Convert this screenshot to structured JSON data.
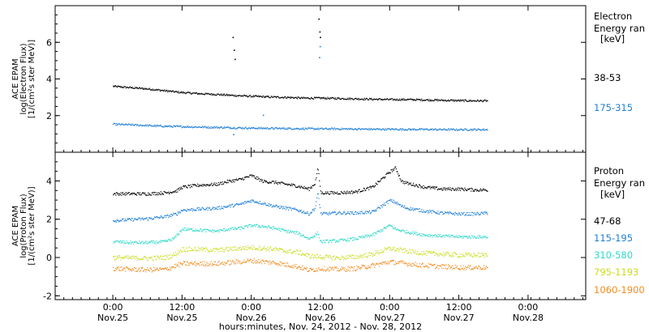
{
  "chart_data": [
    {
      "name": "electron_panel",
      "type": "scatter",
      "ylabel": [
        "ACE EPAM",
        "log(Electron Flux)",
        "[1/(cm²s ster MeV)]"
      ],
      "ylim": [
        0,
        8
      ],
      "yticks": [
        2,
        4,
        6
      ],
      "legend_title": [
        "Electron",
        "Energy ran",
        "[keV]"
      ],
      "series": [
        {
          "name": "38-53",
          "color": "#000000",
          "points": [
            [
              0,
              3.62
            ],
            [
              6,
              3.55
            ],
            [
              12,
              3.48
            ],
            [
              18,
              3.38
            ],
            [
              24,
              3.28
            ],
            [
              30,
              3.22
            ],
            [
              36,
              3.18
            ],
            [
              42,
              3.12
            ],
            [
              48,
              3.08
            ],
            [
              54,
              3.04
            ],
            [
              60,
              3.02
            ],
            [
              66,
              2.98
            ],
            [
              72,
              2.98
            ],
            [
              78,
              2.96
            ],
            [
              84,
              2.94
            ],
            [
              90,
              2.92
            ],
            [
              96,
              2.9
            ],
            [
              102,
              2.9
            ],
            [
              108,
              2.88
            ],
            [
              114,
              2.86
            ],
            [
              120,
              2.84
            ],
            [
              126,
              2.83
            ],
            [
              130,
              2.83
            ]
          ],
          "spikes": [
            [
              41.5,
              6.3
            ],
            [
              41.9,
              5.6
            ],
            [
              42.2,
              5.1
            ],
            [
              71.3,
              7.3
            ],
            [
              71.6,
              6.6
            ],
            [
              71.8,
              6.3
            ]
          ]
        },
        {
          "name": "175-315",
          "color": "#1e7fd6",
          "points": [
            [
              0,
              1.55
            ],
            [
              6,
              1.52
            ],
            [
              12,
              1.48
            ],
            [
              18,
              1.44
            ],
            [
              24,
              1.42
            ],
            [
              30,
              1.4
            ],
            [
              36,
              1.38
            ],
            [
              42,
              1.36
            ],
            [
              48,
              1.34
            ],
            [
              54,
              1.33
            ],
            [
              60,
              1.32
            ],
            [
              66,
              1.31
            ],
            [
              72,
              1.3
            ],
            [
              78,
              1.3
            ],
            [
              84,
              1.29
            ],
            [
              90,
              1.28
            ],
            [
              96,
              1.28
            ],
            [
              102,
              1.27
            ],
            [
              108,
              1.27
            ],
            [
              114,
              1.26
            ],
            [
              120,
              1.26
            ],
            [
              126,
              1.26
            ],
            [
              130,
              1.26
            ]
          ],
          "spikes": [
            [
              41.7,
              1.0
            ],
            [
              52.0,
              2.05
            ],
            [
              71.5,
              5.2
            ],
            [
              71.7,
              5.8
            ]
          ]
        }
      ]
    },
    {
      "name": "proton_panel",
      "type": "scatter",
      "xlabel": "hours:minutes, Nov. 24, 2012 - Nov. 28, 2012",
      "ylabel": [
        "ACE EPAM",
        "log(Proton Flux)",
        "[1/(cm²s ster MeV)]"
      ],
      "ylim": [
        -2.2,
        5.5
      ],
      "yticks": [
        -2,
        0,
        2,
        4
      ],
      "legend_title": [
        "Proton",
        "Energy ran",
        "[keV]"
      ],
      "series": [
        {
          "name": "47-68",
          "color": "#000000",
          "points": [
            [
              0,
              3.35
            ],
            [
              6,
              3.35
            ],
            [
              12,
              3.35
            ],
            [
              18,
              3.4
            ],
            [
              22,
              3.5
            ],
            [
              24,
              3.7
            ],
            [
              30,
              3.8
            ],
            [
              36,
              3.85
            ],
            [
              40,
              4.0
            ],
            [
              44,
              4.1
            ],
            [
              48,
              4.3
            ],
            [
              52,
              4.0
            ],
            [
              56,
              3.95
            ],
            [
              60,
              3.85
            ],
            [
              64,
              3.75
            ],
            [
              68,
              3.6
            ],
            [
              70,
              3.9
            ],
            [
              71,
              4.7
            ],
            [
              72,
              3.4
            ],
            [
              78,
              3.4
            ],
            [
              84,
              3.45
            ],
            [
              90,
              3.7
            ],
            [
              96,
              4.5
            ],
            [
              98,
              4.7
            ],
            [
              100,
              4.0
            ],
            [
              102,
              3.9
            ],
            [
              108,
              3.7
            ],
            [
              114,
              3.6
            ],
            [
              120,
              3.6
            ],
            [
              126,
              3.55
            ],
            [
              130,
              3.55
            ]
          ]
        },
        {
          "name": "115-195",
          "color": "#1e7fd6",
          "points": [
            [
              0,
              1.95
            ],
            [
              6,
              2.0
            ],
            [
              12,
              2.05
            ],
            [
              18,
              2.15
            ],
            [
              22,
              2.3
            ],
            [
              24,
              2.5
            ],
            [
              30,
              2.55
            ],
            [
              36,
              2.6
            ],
            [
              40,
              2.7
            ],
            [
              44,
              2.8
            ],
            [
              48,
              3.0
            ],
            [
              52,
              2.85
            ],
            [
              56,
              2.7
            ],
            [
              60,
              2.6
            ],
            [
              64,
              2.5
            ],
            [
              68,
              2.3
            ],
            [
              70,
              2.6
            ],
            [
              71,
              3.4
            ],
            [
              72,
              2.3
            ],
            [
              78,
              2.35
            ],
            [
              84,
              2.35
            ],
            [
              90,
              2.4
            ],
            [
              96,
              3.0
            ],
            [
              98,
              2.9
            ],
            [
              100,
              2.7
            ],
            [
              102,
              2.6
            ],
            [
              108,
              2.45
            ],
            [
              114,
              2.35
            ],
            [
              120,
              2.3
            ],
            [
              126,
              2.3
            ],
            [
              130,
              2.35
            ]
          ]
        },
        {
          "name": "310-580",
          "color": "#2fd9c8",
          "points": [
            [
              0,
              0.85
            ],
            [
              6,
              0.8
            ],
            [
              12,
              0.8
            ],
            [
              18,
              0.85
            ],
            [
              21,
              1.0
            ],
            [
              24,
              1.5
            ],
            [
              30,
              1.45
            ],
            [
              36,
              1.4
            ],
            [
              40,
              1.5
            ],
            [
              44,
              1.55
            ],
            [
              48,
              1.7
            ],
            [
              52,
              1.65
            ],
            [
              56,
              1.55
            ],
            [
              60,
              1.4
            ],
            [
              64,
              1.3
            ],
            [
              68,
              1.0
            ],
            [
              71,
              1.3
            ],
            [
              72,
              0.85
            ],
            [
              78,
              0.9
            ],
            [
              84,
              1.0
            ],
            [
              90,
              1.2
            ],
            [
              96,
              1.7
            ],
            [
              98,
              1.5
            ],
            [
              102,
              1.35
            ],
            [
              108,
              1.2
            ],
            [
              114,
              1.15
            ],
            [
              120,
              1.1
            ],
            [
              126,
              1.1
            ],
            [
              130,
              1.1
            ]
          ]
        },
        {
          "name": "795-1193",
          "color": "#c8dc1e",
          "points": [
            [
              0,
              0.02
            ],
            [
              6,
              0.0
            ],
            [
              12,
              -0.02
            ],
            [
              18,
              0.02
            ],
            [
              21,
              0.15
            ],
            [
              24,
              0.45
            ],
            [
              30,
              0.45
            ],
            [
              36,
              0.4
            ],
            [
              40,
              0.45
            ],
            [
              44,
              0.5
            ],
            [
              48,
              0.55
            ],
            [
              52,
              0.5
            ],
            [
              56,
              0.45
            ],
            [
              60,
              0.35
            ],
            [
              64,
              0.3
            ],
            [
              68,
              0.1
            ],
            [
              72,
              0.05
            ],
            [
              78,
              0.0
            ],
            [
              84,
              0.05
            ],
            [
              90,
              0.2
            ],
            [
              96,
              0.5
            ],
            [
              102,
              0.35
            ],
            [
              108,
              0.25
            ],
            [
              114,
              0.2
            ],
            [
              120,
              0.15
            ],
            [
              126,
              0.15
            ],
            [
              130,
              0.15
            ]
          ]
        },
        {
          "name": "1060-1900",
          "color": "#f08c1e",
          "points": [
            [
              0,
              -0.55
            ],
            [
              6,
              -0.6
            ],
            [
              12,
              -0.62
            ],
            [
              18,
              -0.6
            ],
            [
              21,
              -0.45
            ],
            [
              24,
              -0.3
            ],
            [
              30,
              -0.3
            ],
            [
              36,
              -0.3
            ],
            [
              40,
              -0.25
            ],
            [
              44,
              -0.2
            ],
            [
              48,
              -0.15
            ],
            [
              52,
              -0.2
            ],
            [
              56,
              -0.25
            ],
            [
              60,
              -0.35
            ],
            [
              64,
              -0.45
            ],
            [
              68,
              -0.65
            ],
            [
              72,
              -0.55
            ],
            [
              78,
              -0.6
            ],
            [
              84,
              -0.55
            ],
            [
              90,
              -0.4
            ],
            [
              96,
              -0.2
            ],
            [
              102,
              -0.3
            ],
            [
              108,
              -0.4
            ],
            [
              114,
              -0.45
            ],
            [
              120,
              -0.5
            ],
            [
              126,
              -0.5
            ],
            [
              130,
              -0.5
            ]
          ]
        }
      ]
    }
  ],
  "x_axis": {
    "range_hours": [
      -20,
      164
    ],
    "ticks": [
      {
        "hour": 0,
        "time": "0:00",
        "date": "Nov.25"
      },
      {
        "hour": 24,
        "time": "12:00",
        "date": "Nov.25"
      },
      {
        "hour": 48,
        "time": "0:00",
        "date": "Nov.26"
      },
      {
        "hour": 72,
        "time": "12:00",
        "date": "Nov.26"
      },
      {
        "hour": 96,
        "time": "0:00",
        "date": "Nov.27"
      },
      {
        "hour": 120,
        "time": "12:00",
        "date": "Nov.27"
      },
      {
        "hour": 144,
        "time": "0:00",
        "date": "Nov.28"
      }
    ]
  }
}
